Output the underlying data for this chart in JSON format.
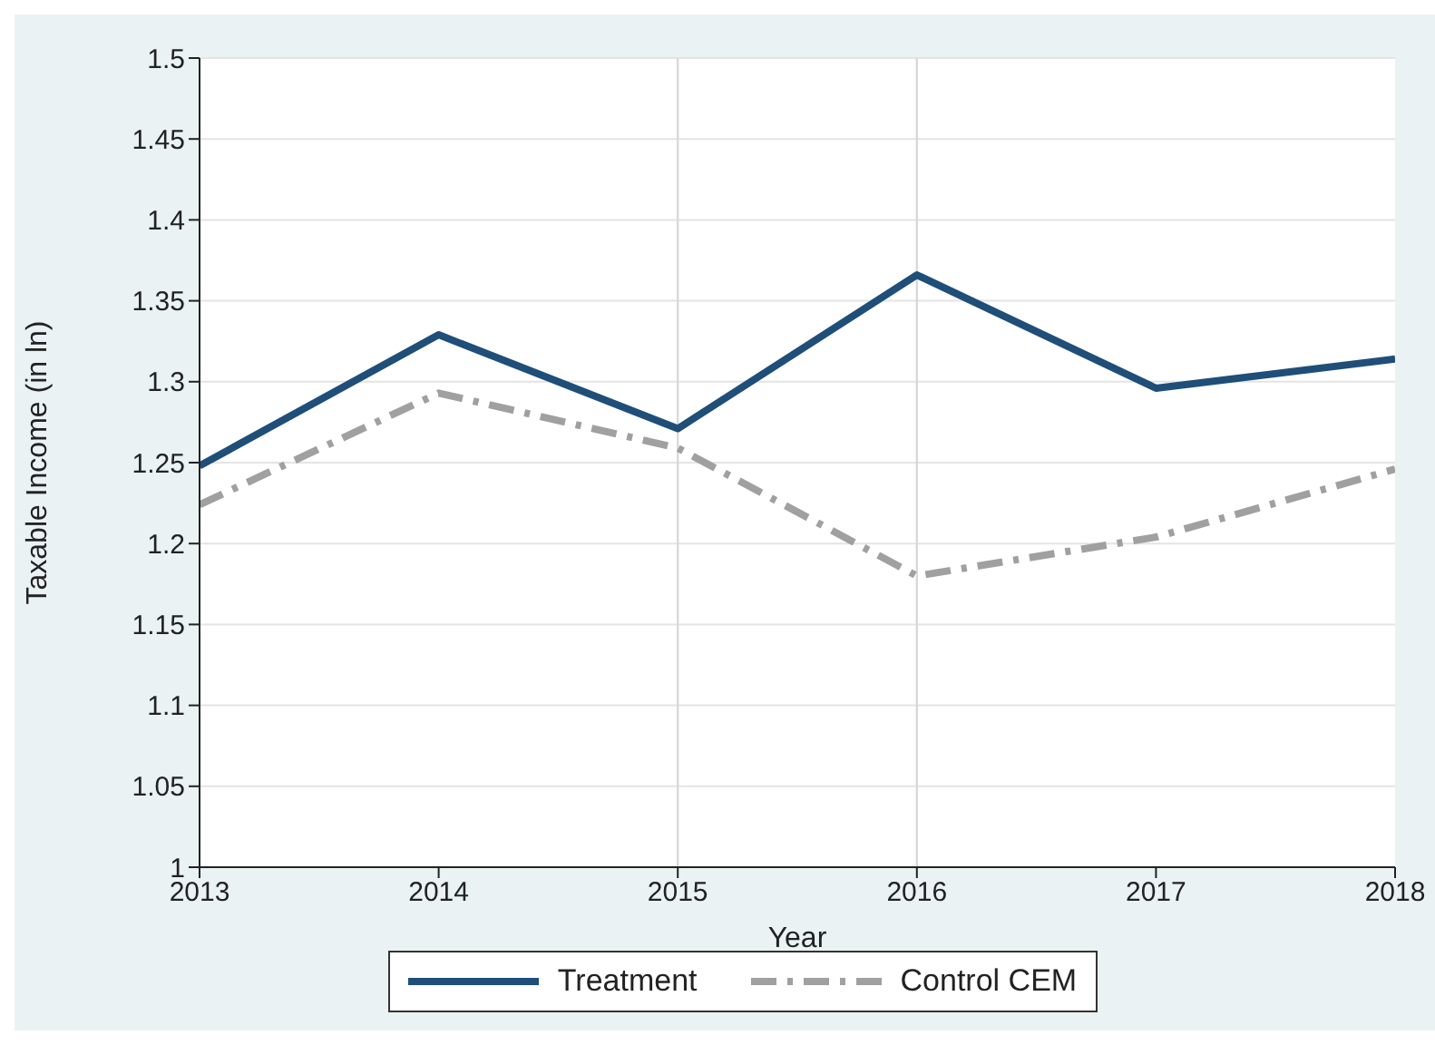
{
  "chart_data": {
    "type": "line",
    "xlabel": "Year",
    "ylabel": "Taxable Income (in ln)",
    "x": [
      2013,
      2014,
      2015,
      2016,
      2017,
      2018
    ],
    "series": [
      {
        "name": "Treatment",
        "color": "#1f4e79",
        "line_style": "solid",
        "values": [
          1.248,
          1.329,
          1.271,
          1.366,
          1.296,
          1.314
        ]
      },
      {
        "name": "Control CEM",
        "color": "#a0a0a0",
        "line_style": "dashed",
        "values": [
          1.224,
          1.293,
          1.259,
          1.18,
          1.204,
          1.246
        ]
      }
    ],
    "xlim": [
      2013,
      2018
    ],
    "xticks": [
      2013,
      2014,
      2015,
      2016,
      2017,
      2018
    ],
    "ylim": [
      1,
      1.5
    ],
    "yticks": [
      1,
      1.05,
      1.1,
      1.15,
      1.2,
      1.25,
      1.3,
      1.35,
      1.4,
      1.45,
      1.5
    ],
    "ref_lines": [
      {
        "axis": "x",
        "value": 2015,
        "color": "#d9d9d9"
      },
      {
        "axis": "x",
        "value": 2016,
        "color": "#d9d9d9"
      }
    ],
    "grid": "y",
    "legend": "bottom",
    "marker": "none"
  }
}
